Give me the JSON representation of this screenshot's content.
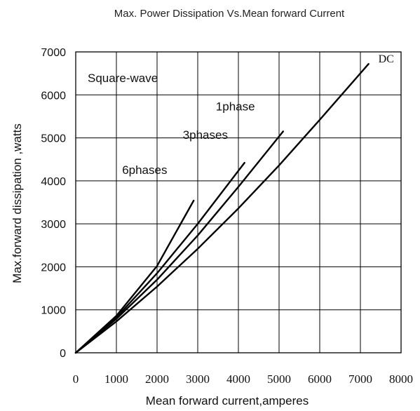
{
  "chart_data": {
    "type": "line",
    "title": "Max. Power Dissipation Vs.Mean forward Current",
    "xlabel": "Mean forward current,amperes",
    "ylabel": "Max.forward dissipation ,watts",
    "xlim": [
      0,
      8000
    ],
    "ylim": [
      0,
      7000
    ],
    "xticks": [
      0,
      1000,
      2000,
      3000,
      4000,
      5000,
      6000,
      7000,
      8000
    ],
    "yticks": [
      0,
      1000,
      2000,
      3000,
      4000,
      5000,
      6000,
      7000
    ],
    "grid": true,
    "annotation": "Square-wave",
    "series": [
      {
        "name": "DC",
        "x": [
          0,
          1000,
          2000,
          3000,
          4000,
          5000,
          6000,
          7200
        ],
        "y": [
          0,
          730,
          1540,
          2420,
          3360,
          4360,
          5420,
          6720
        ]
      },
      {
        "name": "1phase",
        "x": [
          0,
          1000,
          2000,
          3000,
          4000,
          5100
        ],
        "y": [
          0,
          790,
          1700,
          2730,
          3860,
          5150
        ]
      },
      {
        "name": "3phases",
        "x": [
          0,
          1000,
          2000,
          3000,
          4150
        ],
        "y": [
          0,
          820,
          1850,
          3000,
          4420
        ]
      },
      {
        "name": "6phases",
        "x": [
          0,
          1000,
          2000,
          2900
        ],
        "y": [
          0,
          860,
          2020,
          3540
        ]
      }
    ]
  }
}
